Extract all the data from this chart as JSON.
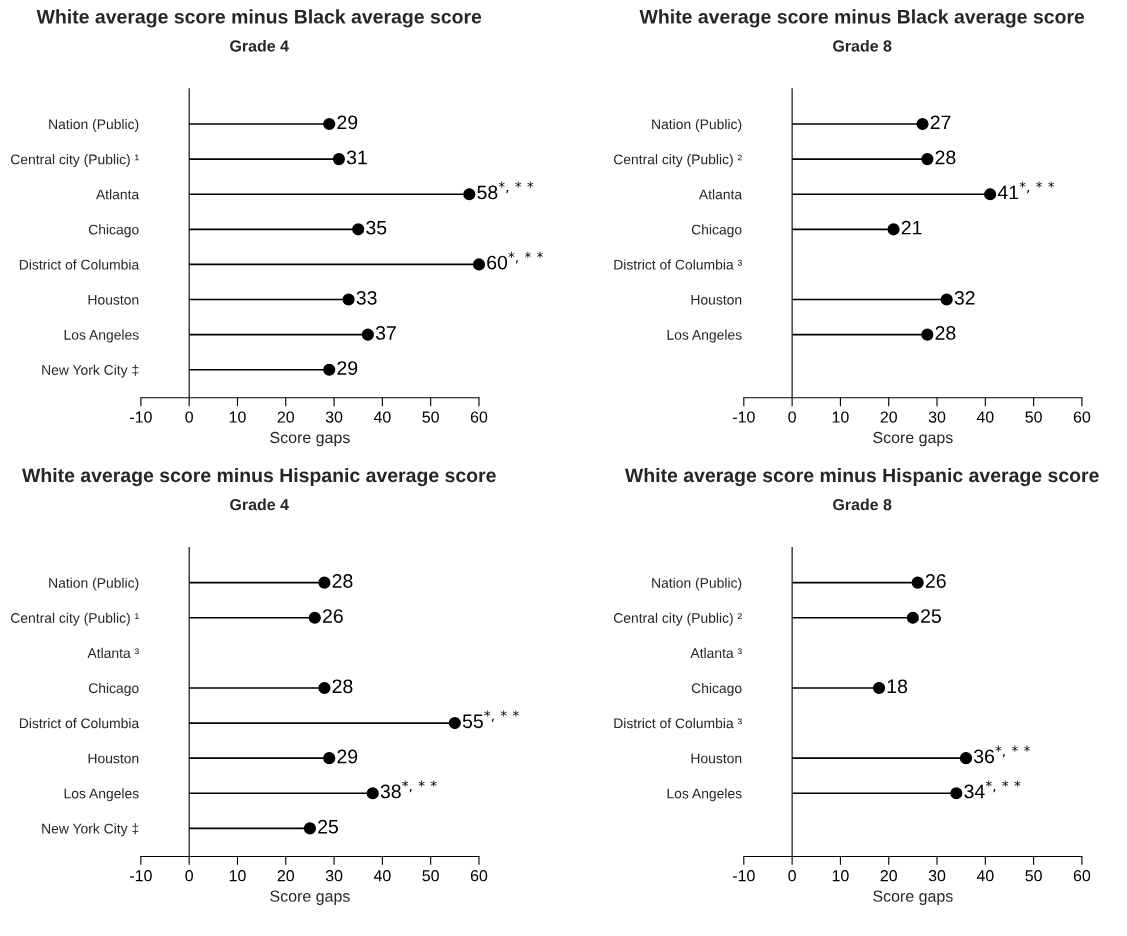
{
  "chart_data": [
    {
      "type": "lollipop",
      "orientation": "horizontal",
      "title": "White average score minus Black average score",
      "subtitle": "Grade 4",
      "xlabel": "Score gaps",
      "categories": [
        "Nation (Public)",
        "Central city (Public) ¹",
        "Atlanta",
        "Chicago",
        "District of Columbia",
        "Houston",
        "Los Angeles",
        "New York City ‡"
      ],
      "values": [
        29,
        31,
        58,
        35,
        60,
        33,
        37,
        29
      ],
      "value_labels": [
        "29",
        "31",
        "58$^{*,**}$",
        "35",
        "60$^{*,**}$",
        "33",
        "37",
        "29"
      ],
      "color": "#000000",
      "marker": "circle",
      "xlim": [
        -10,
        60
      ],
      "xticks": [
        -10,
        0,
        10,
        20,
        30,
        40,
        50,
        60
      ],
      "legend": false
    },
    {
      "type": "lollipop",
      "orientation": "horizontal",
      "title": "White average score minus Black average score",
      "subtitle": "Grade 8",
      "xlabel": "Score gaps",
      "categories": [
        "Nation (Public)",
        "Central city (Public) ²",
        "Atlanta",
        "Chicago",
        "District of Columbia ³",
        "Houston",
        "Los Angeles"
      ],
      "values": [
        27,
        28,
        41,
        21,
        null,
        32,
        28
      ],
      "value_labels": [
        "27",
        "28",
        "41$^{*,**}$",
        "21",
        null,
        "32",
        "28"
      ],
      "color": "#000000",
      "marker": "circle",
      "xlim": [
        -10,
        60
      ],
      "xticks": [
        -10,
        0,
        10,
        20,
        30,
        40,
        50,
        60
      ],
      "legend": false
    },
    {
      "type": "lollipop",
      "orientation": "horizontal",
      "title": "White average score minus Hispanic average score",
      "subtitle": "Grade 4",
      "xlabel": "Score gaps",
      "categories": [
        "Nation (Public)",
        "Central city (Public) ¹",
        "Atlanta ³",
        "Chicago",
        "District of Columbia",
        "Houston",
        "Los Angeles",
        "New York City ‡"
      ],
      "values": [
        28,
        26,
        null,
        28,
        55,
        29,
        38,
        25
      ],
      "value_labels": [
        "28",
        "26",
        null,
        "28",
        "55$^{*,**}$",
        "29",
        "38$^{*,**}$",
        "25"
      ],
      "color": "#000000",
      "marker": "circle",
      "xlim": [
        -10,
        60
      ],
      "xticks": [
        -10,
        0,
        10,
        20,
        30,
        40,
        50,
        60
      ],
      "legend": false
    },
    {
      "type": "lollipop",
      "orientation": "horizontal",
      "title": "White average score minus Hispanic average score",
      "subtitle": "Grade 8",
      "xlabel": "Score gaps",
      "categories": [
        "Nation (Public)",
        "Central city (Public) ²",
        "Atlanta ³",
        "Chicago",
        "District of Columbia ³",
        "Houston",
        "Los Angeles"
      ],
      "values": [
        26,
        25,
        null,
        18,
        null,
        36,
        34
      ],
      "value_labels": [
        "26",
        "25",
        null,
        "18",
        null,
        "36$^{*,**}$",
        "34$^{*,**}$"
      ],
      "color": "#000000",
      "marker": "circle",
      "xlim": [
        -10,
        60
      ],
      "xticks": [
        -10,
        0,
        10,
        20,
        30,
        40,
        50,
        60
      ],
      "legend": false
    }
  ]
}
